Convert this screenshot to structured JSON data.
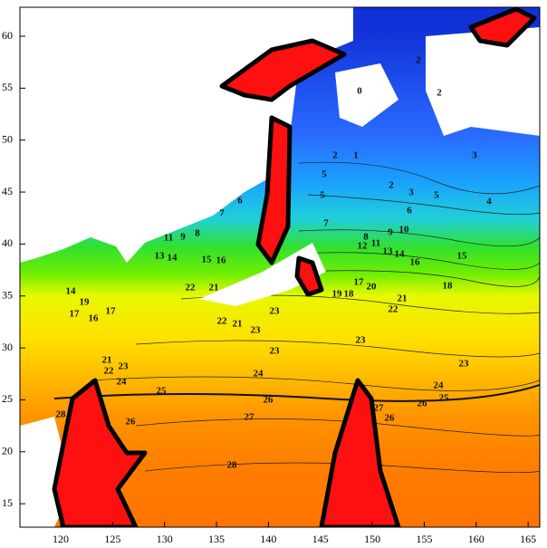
{
  "map": {
    "xticks": [
      120,
      125,
      130,
      135,
      140,
      145,
      150,
      155,
      160,
      165
    ],
    "yticks": [
      15,
      20,
      25,
      30,
      35,
      40,
      45,
      50,
      55,
      60
    ],
    "contour_labels": [
      2,
      2,
      0,
      2,
      1,
      3,
      5,
      2,
      3,
      5,
      4,
      6,
      5,
      6,
      7,
      7,
      8,
      9,
      11,
      8,
      9,
      10,
      12,
      11,
      13,
      14,
      16,
      15,
      13,
      14,
      15,
      16,
      17,
      20,
      19,
      18,
      18,
      21,
      22,
      14,
      19,
      16,
      17,
      17,
      22,
      21,
      22,
      21,
      23,
      23,
      23,
      23,
      23,
      21,
      22,
      23,
      24,
      25,
      24,
      26,
      24,
      25,
      26,
      27,
      26,
      27,
      26,
      28,
      28
    ]
  }
}
